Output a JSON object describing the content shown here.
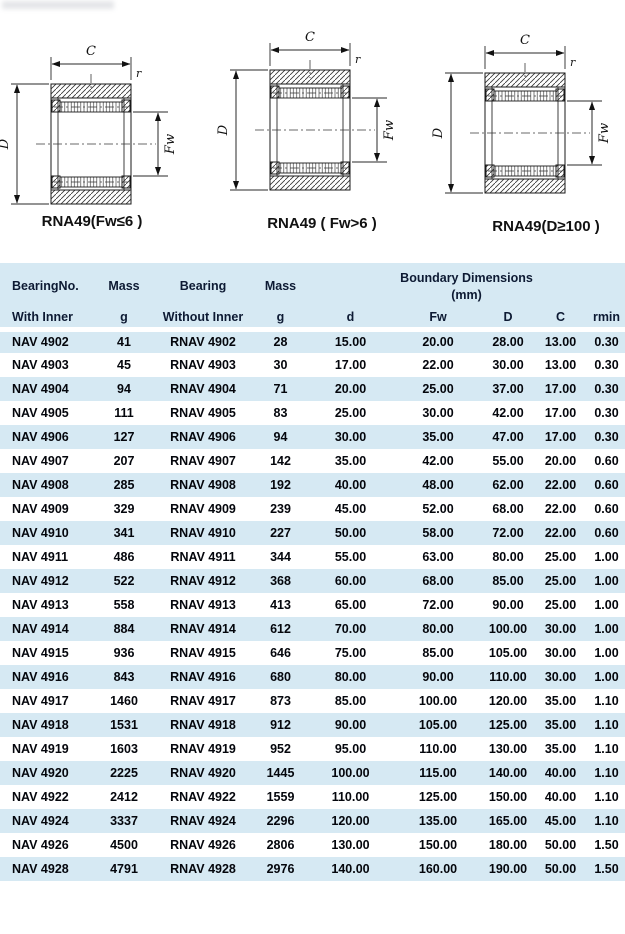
{
  "diagrams": {
    "labels": {
      "c": "C",
      "d": "D",
      "fw": "Fw",
      "r": "r"
    },
    "items": [
      {
        "caption": "RNA49(Fw≤6 )"
      },
      {
        "caption": "RNA49 ( Fw>6 )"
      },
      {
        "caption": "RNA49(D≥100 )"
      }
    ]
  },
  "table": {
    "header": {
      "col1": "BearingNo.",
      "col2": "Mass",
      "col3": "Bearing",
      "col4": "Mass",
      "boundary": "Boundary Dimensions",
      "boundary_unit": "(mm)",
      "sub": [
        "With Inner",
        "g",
        "Without Inner",
        "g",
        "d",
        "Fw",
        "D",
        "C",
        "rmin"
      ]
    },
    "rows": [
      [
        "NAV 4902",
        "41",
        "RNAV 4902",
        "28",
        "15.00",
        "20.00",
        "28.00",
        "13.00",
        "0.30"
      ],
      [
        "NAV 4903",
        "45",
        "RNAV 4903",
        "30",
        "17.00",
        "22.00",
        "30.00",
        "13.00",
        "0.30"
      ],
      [
        "NAV 4904",
        "94",
        "RNAV 4904",
        "71",
        "20.00",
        "25.00",
        "37.00",
        "17.00",
        "0.30"
      ],
      [
        "NAV 4905",
        "111",
        "RNAV 4905",
        "83",
        "25.00",
        "30.00",
        "42.00",
        "17.00",
        "0.30"
      ],
      [
        "NAV 4906",
        "127",
        "RNAV 4906",
        "94",
        "30.00",
        "35.00",
        "47.00",
        "17.00",
        "0.30"
      ],
      [
        "NAV 4907",
        "207",
        "RNAV 4907",
        "142",
        "35.00",
        "42.00",
        "55.00",
        "20.00",
        "0.60"
      ],
      [
        "NAV 4908",
        "285",
        "RNAV 4908",
        "192",
        "40.00",
        "48.00",
        "62.00",
        "22.00",
        "0.60"
      ],
      [
        "NAV 4909",
        "329",
        "RNAV 4909",
        "239",
        "45.00",
        "52.00",
        "68.00",
        "22.00",
        "0.60"
      ],
      [
        "NAV 4910",
        "341",
        "RNAV 4910",
        "227",
        "50.00",
        "58.00",
        "72.00",
        "22.00",
        "0.60"
      ],
      [
        "NAV 4911",
        "486",
        "RNAV 4911",
        "344",
        "55.00",
        "63.00",
        "80.00",
        "25.00",
        "1.00"
      ],
      [
        "NAV 4912",
        "522",
        "RNAV 4912",
        "368",
        "60.00",
        "68.00",
        "85.00",
        "25.00",
        "1.00"
      ],
      [
        "NAV 4913",
        "558",
        "RNAV 4913",
        "413",
        "65.00",
        "72.00",
        "90.00",
        "25.00",
        "1.00"
      ],
      [
        "NAV 4914",
        "884",
        "RNAV 4914",
        "612",
        "70.00",
        "80.00",
        "100.00",
        "30.00",
        "1.00"
      ],
      [
        "NAV 4915",
        "936",
        "RNAV 4915",
        "646",
        "75.00",
        "85.00",
        "105.00",
        "30.00",
        "1.00"
      ],
      [
        "NAV 4916",
        "843",
        "RNAV 4916",
        "680",
        "80.00",
        "90.00",
        "110.00",
        "30.00",
        "1.00"
      ],
      [
        "NAV 4917",
        "1460",
        "RNAV 4917",
        "873",
        "85.00",
        "100.00",
        "120.00",
        "35.00",
        "1.10"
      ],
      [
        "NAV 4918",
        "1531",
        "RNAV 4918",
        "912",
        "90.00",
        "105.00",
        "125.00",
        "35.00",
        "1.10"
      ],
      [
        "NAV 4919",
        "1603",
        "RNAV 4919",
        "952",
        "95.00",
        "110.00",
        "130.00",
        "35.00",
        "1.10"
      ],
      [
        "NAV 4920",
        "2225",
        "RNAV 4920",
        "1445",
        "100.00",
        "115.00",
        "140.00",
        "40.00",
        "1.10"
      ],
      [
        "NAV 4922",
        "2412",
        "RNAV 4922",
        "1559",
        "110.00",
        "125.00",
        "150.00",
        "40.00",
        "1.10"
      ],
      [
        "NAV 4924",
        "3337",
        "RNAV 4924",
        "2296",
        "120.00",
        "135.00",
        "165.00",
        "45.00",
        "1.10"
      ],
      [
        "NAV 4926",
        "4500",
        "RNAV 4926",
        "2806",
        "130.00",
        "150.00",
        "180.00",
        "50.00",
        "1.50"
      ],
      [
        "NAV 4928",
        "4791",
        "RNAV 4928",
        "2976",
        "140.00",
        "160.00",
        "190.00",
        "50.00",
        "1.50"
      ]
    ]
  },
  "colors": {
    "row_alt": "#d6e9f3",
    "header_text": "#0d1a33",
    "body_text": "#04060c"
  }
}
